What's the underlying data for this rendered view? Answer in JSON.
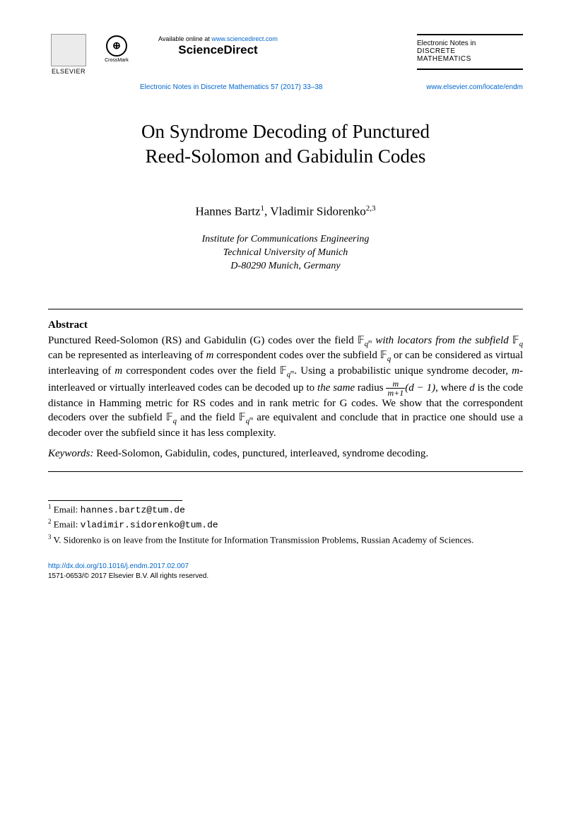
{
  "header": {
    "elsevier_label": "ELSEVIER",
    "crossmark_label": "CrossMark",
    "crossmark_glyph": "⊕",
    "available_text": "Available online at ",
    "available_url": "www.sciencedirect.com",
    "sciencedirect_logo": "ScienceDirect",
    "journal_line1": "Electronic Notes in",
    "journal_line2": "DISCRETE",
    "journal_line3": "MATHEMATICS",
    "citation": "Electronic Notes in Discrete Mathematics 57 (2017) 33–38",
    "locate_url": "www.elsevier.com/locate/endm"
  },
  "title_line1": "On Syndrome Decoding of Punctured",
  "title_line2": "Reed-Solomon and Gabidulin Codes",
  "authors": {
    "a1_name": "Hannes Bartz",
    "a1_sup": "1",
    "sep": ",   ",
    "a2_name": "Vladimir Sidorenko",
    "a2_sup": "2,3"
  },
  "affiliation": {
    "line1": "Institute for Communications Engineering",
    "line2": "Technical University of Munich",
    "line3": "D-80290 Munich, Germany"
  },
  "abstract_heading": "Abstract",
  "abstract": {
    "p1a": "Punctured Reed-Solomon (RS) and Gabidulin (G) codes over the field ",
    "p1b": " with locators from the subfield ",
    "p1c": " can be represented as interleaving of ",
    "p1d": " correspondent codes over the subfield ",
    "p1e": " or can be considered as virtual interleaving of ",
    "p1f": " correspondent codes over the field ",
    "p1g": ". Using a probabilistic unique syndrome decoder, ",
    "p1h": "-interleaved or virtually interleaved codes can be decoded up to ",
    "p1i": "the same",
    "p1j": " radius ",
    "p1k": ", where ",
    "p1l": " is the code distance in Hamming metric for RS codes and in rank metric for G codes. We show that the correspondent decoders over the subfield ",
    "p1m": " and the field ",
    "p1n": " are equivalent and conclude that in practice one should use a decoder over the subfield since it has less complexity.",
    "frac_num": "m",
    "frac_den": "m+1",
    "frac_after": "(d − 1)",
    "m_var": "m",
    "d_var": "d",
    "Fq": "𝔽",
    "q": "q",
    "qm": "qᵐ"
  },
  "keywords": {
    "label": "Keywords:",
    "text": "  Reed-Solomon, Gabidulin, codes, punctured, interleaved, syndrome decoding."
  },
  "footnotes": {
    "f1_sup": "1",
    "f1_label": "  Email: ",
    "f1_email": "hannes.bartz@tum.de",
    "f2_sup": "2",
    "f2_label": "  Email: ",
    "f2_email": "vladimir.sidorenko@tum.de",
    "f3_sup": "3",
    "f3_text": "  V. Sidorenko is on leave from the Institute for Information Transmission Problems, Russian Academy of Sciences."
  },
  "doi": {
    "url": "http://dx.doi.org/10.1016/j.endm.2017.02.007",
    "copyright": "1571-0653/© 2017 Elsevier B.V. All rights reserved."
  }
}
